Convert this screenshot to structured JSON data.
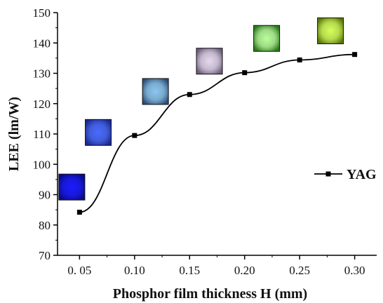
{
  "chart_data": {
    "type": "line",
    "xlabel": "Phosphor film thickness H (mm)",
    "ylabel": "LEE (lm/W)",
    "xlim": [
      0.03,
      0.32
    ],
    "ylim": [
      70,
      150
    ],
    "x_ticks": [
      0.05,
      0.1,
      0.15,
      0.2,
      0.25,
      0.3
    ],
    "x_tick_labels": [
      "0. 05",
      "0.10",
      "0.15",
      "0.20",
      "0.25",
      "0.30"
    ],
    "y_ticks": [
      70,
      80,
      90,
      100,
      110,
      120,
      130,
      140,
      150
    ],
    "y_tick_labels": [
      "70",
      "80",
      "90",
      "100",
      "110",
      "120",
      "130",
      "140",
      "150"
    ],
    "grid": false,
    "legend_position": "right",
    "series": [
      {
        "name": "YAG",
        "marker": "square",
        "color": "#000000",
        "x": [
          0.05,
          0.1,
          0.15,
          0.2,
          0.25,
          0.3
        ],
        "y": [
          84.2,
          109.5,
          123.0,
          130.2,
          134.4,
          136.2
        ]
      }
    ],
    "glow_images": [
      {
        "name": "glow-0.05",
        "x": 0.043,
        "y": 92.5,
        "core": "#1a1aff",
        "edge": "#0a0a8a"
      },
      {
        "name": "glow-0.10",
        "x": 0.067,
        "y": 110.5,
        "core": "#4a6bff",
        "edge": "#1a2a8f"
      },
      {
        "name": "glow-0.15",
        "x": 0.119,
        "y": 124.0,
        "core": "#8cc6f0",
        "edge": "#2d4f7a"
      },
      {
        "name": "glow-0.20",
        "x": 0.168,
        "y": 134.0,
        "core": "#e6d8f0",
        "edge": "#6e5f7e"
      },
      {
        "name": "glow-0.25",
        "x": 0.22,
        "y": 141.5,
        "core": "#b8ff9a",
        "edge": "#2e7a1e"
      },
      {
        "name": "glow-0.30",
        "x": 0.278,
        "y": 144.0,
        "core": "#d4ff5a",
        "edge": "#5c7a0a"
      }
    ]
  }
}
